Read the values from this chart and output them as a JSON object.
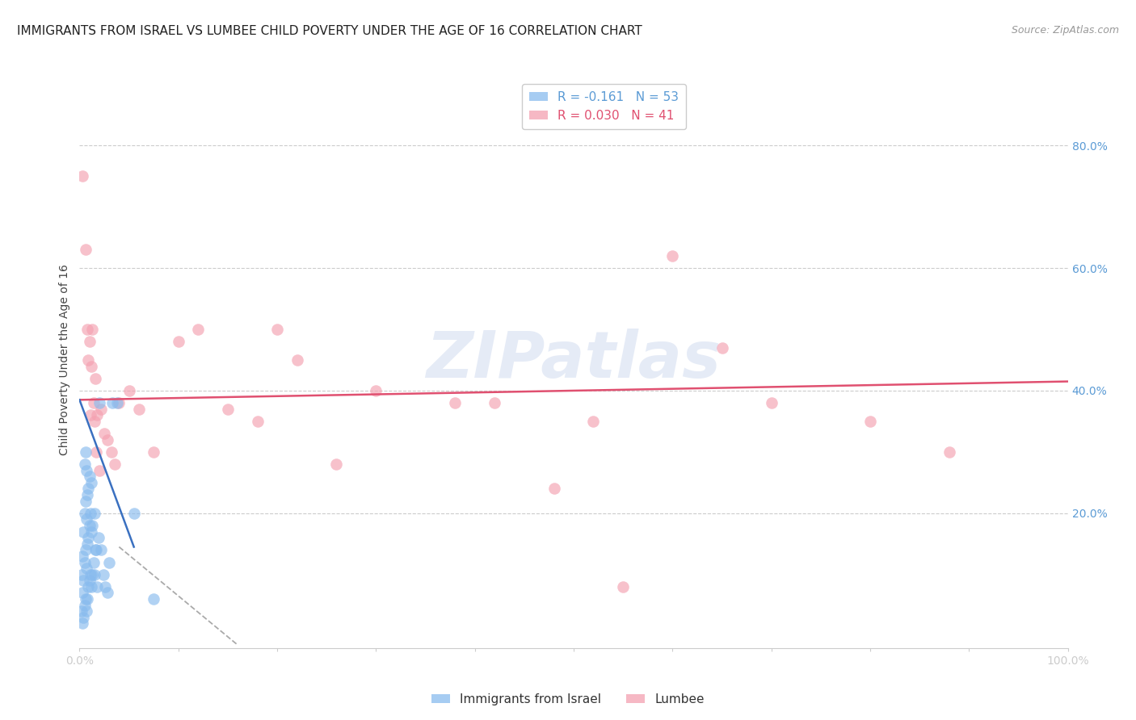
{
  "title": "IMMIGRANTS FROM ISRAEL VS LUMBEE CHILD POVERTY UNDER THE AGE OF 16 CORRELATION CHART",
  "source": "Source: ZipAtlas.com",
  "ylabel": "Child Poverty Under the Age of 16",
  "xlim": [
    0.0,
    1.0
  ],
  "ylim": [
    -0.02,
    0.92
  ],
  "xtick_labels_edge": [
    "0.0%",
    "100.0%"
  ],
  "xtick_vals_edge": [
    0.0,
    1.0
  ],
  "ytick_labels": [
    "80.0%",
    "60.0%",
    "40.0%",
    "20.0%"
  ],
  "ytick_vals": [
    0.8,
    0.6,
    0.4,
    0.2
  ],
  "blue_R": -0.161,
  "blue_N": 53,
  "pink_R": 0.03,
  "pink_N": 41,
  "blue_color": "#88bbee",
  "pink_color": "#f4a0b0",
  "legend_blue_label": "Immigrants from Israel",
  "legend_pink_label": "Lumbee",
  "watermark": "ZIPatlas",
  "blue_scatter_x": [
    0.002,
    0.002,
    0.003,
    0.003,
    0.003,
    0.004,
    0.004,
    0.004,
    0.005,
    0.005,
    0.005,
    0.005,
    0.006,
    0.006,
    0.006,
    0.006,
    0.007,
    0.007,
    0.007,
    0.007,
    0.008,
    0.008,
    0.008,
    0.009,
    0.009,
    0.009,
    0.01,
    0.01,
    0.01,
    0.011,
    0.011,
    0.012,
    0.012,
    0.012,
    0.013,
    0.013,
    0.014,
    0.015,
    0.015,
    0.016,
    0.017,
    0.018,
    0.019,
    0.02,
    0.022,
    0.024,
    0.026,
    0.028,
    0.03,
    0.033,
    0.038,
    0.055,
    0.075
  ],
  "blue_scatter_y": [
    0.04,
    0.1,
    0.02,
    0.07,
    0.13,
    0.03,
    0.09,
    0.17,
    0.05,
    0.12,
    0.2,
    0.28,
    0.06,
    0.14,
    0.22,
    0.3,
    0.04,
    0.11,
    0.19,
    0.27,
    0.06,
    0.15,
    0.23,
    0.08,
    0.16,
    0.24,
    0.09,
    0.18,
    0.26,
    0.1,
    0.2,
    0.08,
    0.17,
    0.25,
    0.1,
    0.18,
    0.12,
    0.1,
    0.2,
    0.14,
    0.14,
    0.08,
    0.16,
    0.38,
    0.14,
    0.1,
    0.08,
    0.07,
    0.12,
    0.38,
    0.38,
    0.2,
    0.06
  ],
  "pink_scatter_x": [
    0.003,
    0.006,
    0.008,
    0.009,
    0.01,
    0.011,
    0.012,
    0.013,
    0.014,
    0.015,
    0.016,
    0.017,
    0.018,
    0.02,
    0.022,
    0.025,
    0.028,
    0.032,
    0.036,
    0.04,
    0.05,
    0.06,
    0.075,
    0.1,
    0.12,
    0.15,
    0.18,
    0.2,
    0.22,
    0.26,
    0.3,
    0.38,
    0.42,
    0.48,
    0.52,
    0.55,
    0.6,
    0.65,
    0.7,
    0.8,
    0.88
  ],
  "pink_scatter_y": [
    0.75,
    0.63,
    0.5,
    0.45,
    0.48,
    0.36,
    0.44,
    0.5,
    0.38,
    0.35,
    0.42,
    0.3,
    0.36,
    0.27,
    0.37,
    0.33,
    0.32,
    0.3,
    0.28,
    0.38,
    0.4,
    0.37,
    0.3,
    0.48,
    0.5,
    0.37,
    0.35,
    0.5,
    0.45,
    0.28,
    0.4,
    0.38,
    0.38,
    0.24,
    0.35,
    0.08,
    0.62,
    0.47,
    0.38,
    0.35,
    0.3
  ],
  "blue_line_x0": 0.0,
  "blue_line_x1": 0.055,
  "blue_line_y0": 0.385,
  "blue_line_y1": 0.145,
  "pink_line_x0": 0.0,
  "pink_line_x1": 1.0,
  "pink_line_y0": 0.385,
  "pink_line_y1": 0.415,
  "dashed_line_x0": 0.04,
  "dashed_line_x1": 0.16,
  "dashed_line_y0": 0.145,
  "dashed_line_y1": -0.015,
  "title_fontsize": 11,
  "axis_label_fontsize": 10,
  "tick_fontsize": 10,
  "legend_fontsize": 11,
  "right_axis_color": "#5b9bd5",
  "grid_color": "#cccccc",
  "bg_color": "#ffffff"
}
